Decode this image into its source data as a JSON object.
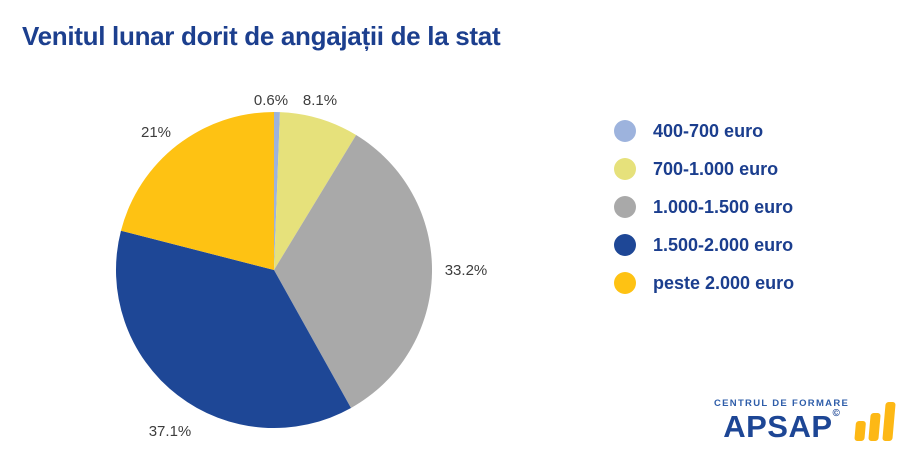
{
  "chart_data": {
    "type": "pie",
    "title": "Venitul lunar dorit de angajații de la stat",
    "legend_position": "right",
    "start_angle_deg": 0,
    "direction": "clockwise",
    "series": [
      {
        "name": "400-700 euro",
        "value": 0.6,
        "display": "0.6%",
        "color": "#9db3dd"
      },
      {
        "name": "700-1.000 euro",
        "value": 8.1,
        "display": "8.1%",
        "color": "#e6e17b"
      },
      {
        "name": "1.000-1.500 euro",
        "value": 33.2,
        "display": "33.2%",
        "color": "#a9a9a9"
      },
      {
        "name": "1.500-2.000 euro",
        "value": 37.1,
        "display": "37.1%",
        "color": "#1e4796"
      },
      {
        "name": "peste 2.000 euro",
        "value": 21.0,
        "display": "21%",
        "color": "#fec213"
      }
    ]
  },
  "logo": {
    "tagline": "CENTRUL DE FORMARE",
    "name": "APSAP",
    "mark": "©"
  },
  "colors": {
    "background": "#ffffff",
    "title_text": "#1c3f8e",
    "legend_text": "#1b3e8e",
    "percent_label_text": "#3d3d3d",
    "logo_blue": "#1d4695",
    "logo_gold": "#fdb815"
  }
}
